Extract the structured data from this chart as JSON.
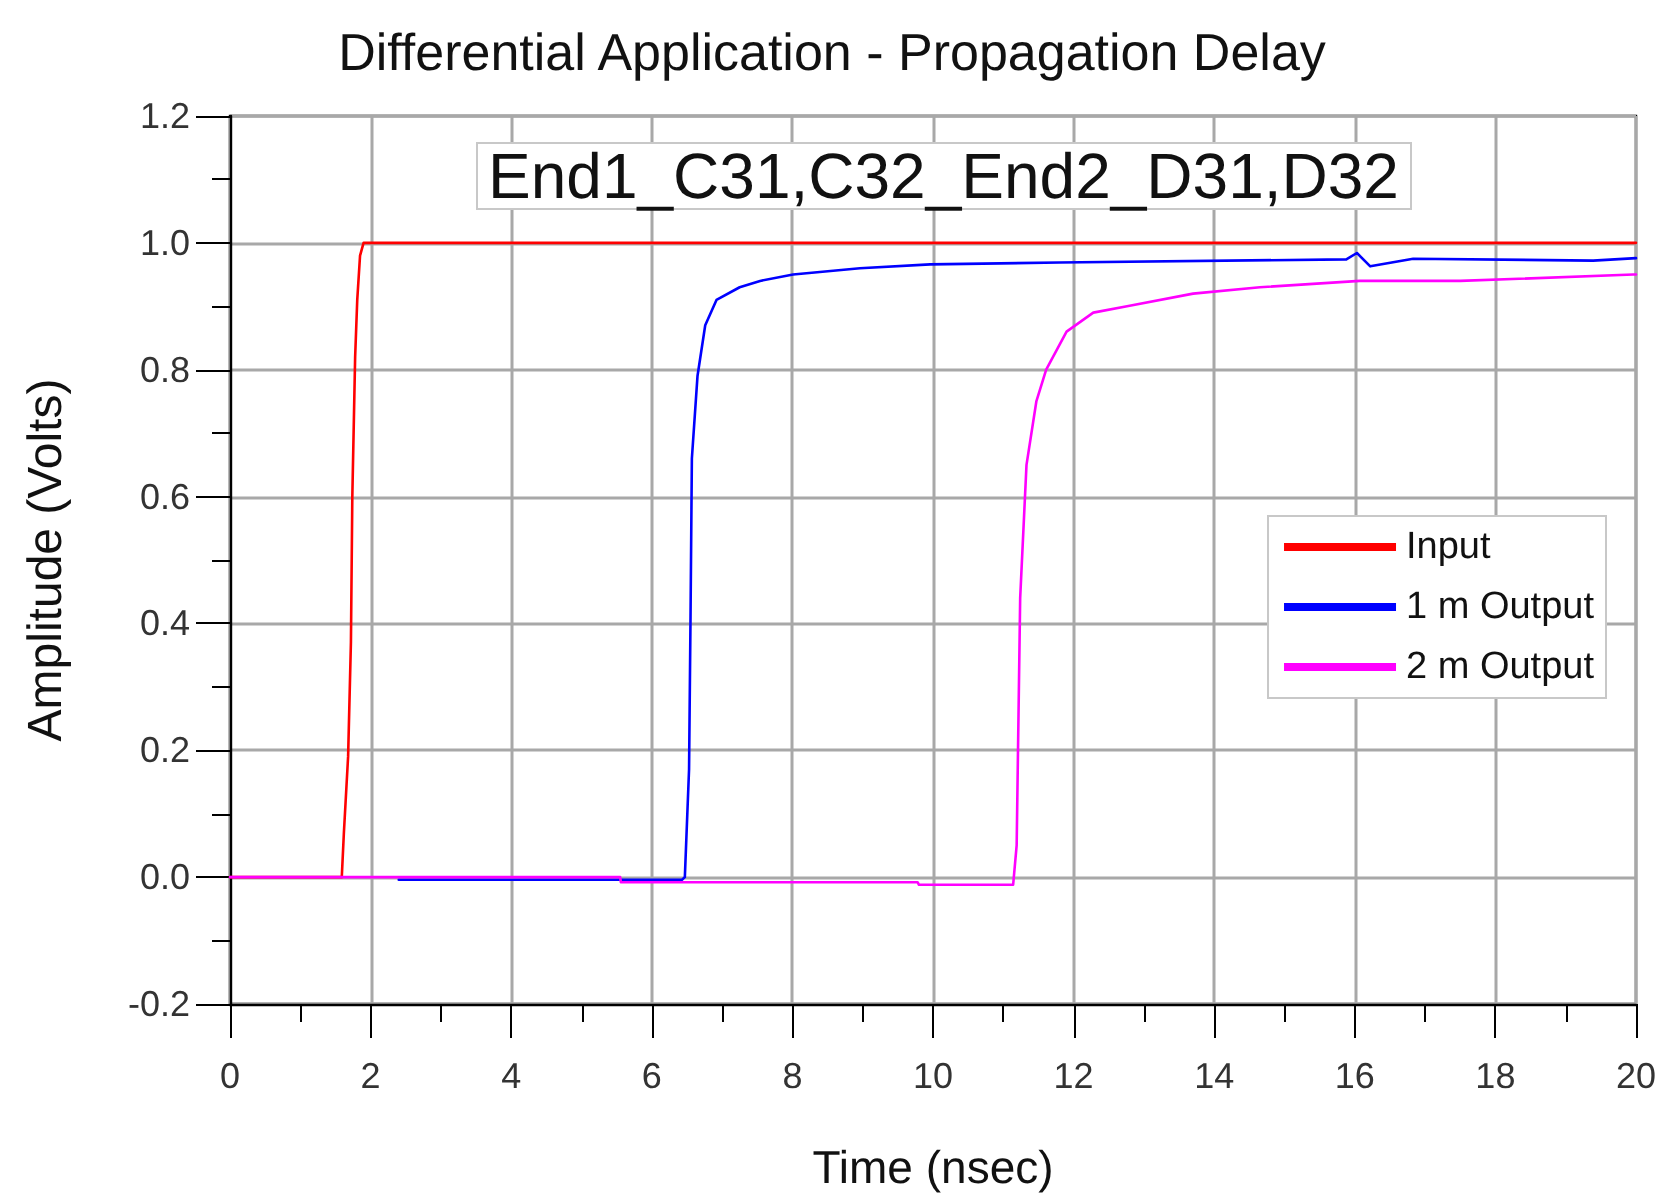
{
  "chart_data": {
    "type": "line",
    "title": "Differential Application - Propagation Delay",
    "xlabel": "Time (nsec)",
    "ylabel": "Amplitude (Volts)",
    "annotations": [
      "End1_C31,C32_End2_D31,D32"
    ],
    "series": [
      {
        "name": "Input",
        "color": "#ff0000",
        "x": [
          0,
          1.59,
          1.62,
          1.68,
          1.72,
          1.74,
          1.78,
          1.81,
          1.85,
          1.9,
          20
        ],
        "values": [
          0,
          0,
          0.07,
          0.19,
          0.37,
          0.6,
          0.82,
          0.91,
          0.98,
          1.0,
          1.0
        ]
      },
      {
        "name": "1 m Output",
        "color": "#0000ff",
        "x": [
          2.4,
          6.43,
          6.47,
          6.53,
          6.55,
          6.57,
          6.65,
          6.76,
          6.92,
          7.25,
          7.54,
          8.01,
          8.96,
          9.96,
          11.8,
          15.88,
          16.03,
          16.22,
          16.83,
          19.39,
          20
        ],
        "values": [
          -0.004,
          -0.004,
          0,
          0.17,
          0.4,
          0.66,
          0.79,
          0.87,
          0.91,
          0.93,
          0.94,
          0.95,
          0.96,
          0.966,
          0.969,
          0.974,
          0.984,
          0.963,
          0.975,
          0.972,
          0.976
        ]
      },
      {
        "name": "2 m Output",
        "color": "#ff00ff",
        "x": [
          0,
          5.55,
          5.56,
          9.78,
          9.8,
          11.14,
          11.19,
          11.24,
          11.33,
          11.47,
          11.61,
          11.9,
          12.28,
          12.76,
          13.7,
          14.65,
          16.07,
          17.5,
          19.96,
          20
        ],
        "values": [
          0,
          0,
          -0.008,
          -0.008,
          -0.012,
          -0.012,
          0.05,
          0.44,
          0.65,
          0.75,
          0.8,
          0.86,
          0.89,
          0.9,
          0.92,
          0.93,
          0.94,
          0.94,
          0.95,
          0.95
        ]
      }
    ],
    "xlim": [
      0,
      20
    ],
    "xticks": [
      0,
      2,
      4,
      6,
      8,
      10,
      12,
      14,
      16,
      18,
      20
    ],
    "ylim": [
      -0.2,
      1.2
    ],
    "yticks": [
      -0.2,
      {
        "value": 0,
        "label": "0.0"
      },
      0.2,
      0.4,
      0.6,
      0.8,
      {
        "value": 1,
        "label": "1.0"
      },
      1.2
    ],
    "grid": true,
    "legend": "right"
  }
}
